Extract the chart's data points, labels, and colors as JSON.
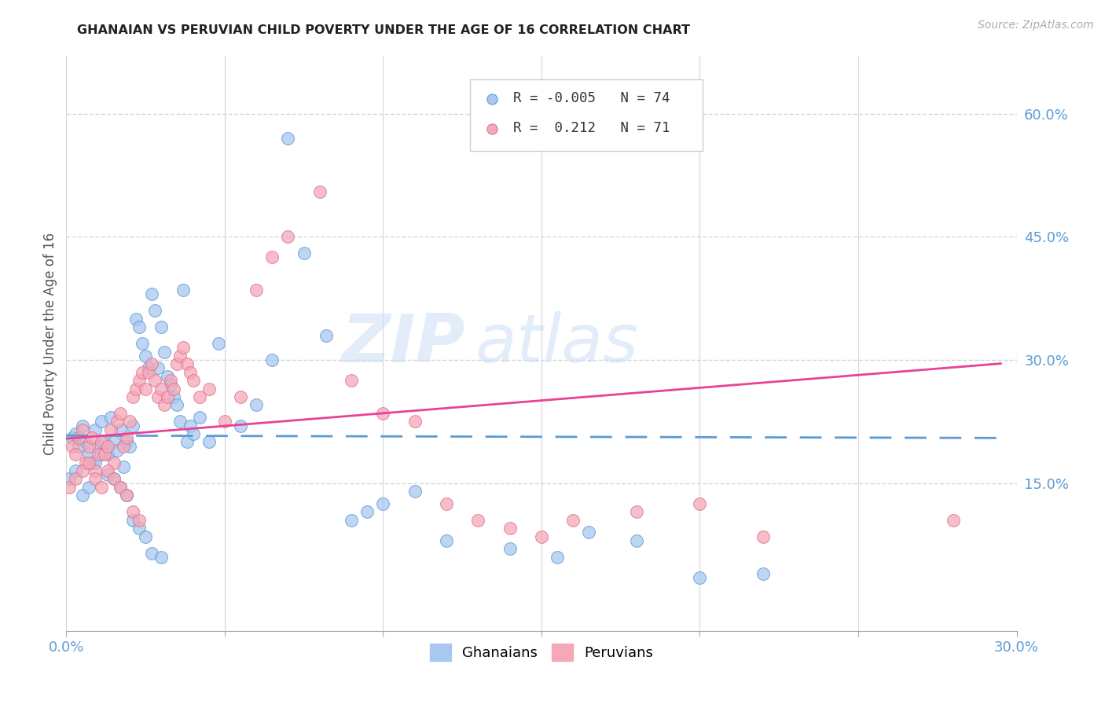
{
  "title": "GHANAIAN VS PERUVIAN CHILD POVERTY UNDER THE AGE OF 16 CORRELATION CHART",
  "source": "Source: ZipAtlas.com",
  "ylabel": "Child Poverty Under the Age of 16",
  "xlim": [
    0.0,
    0.3
  ],
  "ylim": [
    -0.03,
    0.67
  ],
  "ytick_labels_right": [
    "60.0%",
    "45.0%",
    "30.0%",
    "15.0%"
  ],
  "ytick_vals_right": [
    0.6,
    0.45,
    0.3,
    0.15
  ],
  "background_color": "#ffffff",
  "grid_color": "#cccccc",
  "watermark_zip": "ZIP",
  "watermark_atlas": "atlas",
  "color_ghanaian": "#a8c8f0",
  "color_peruvian": "#f5a8b8",
  "edge_ghanaian": "#5b9bd5",
  "edge_peruvian": "#e07090",
  "line_color_ghanaian": "#5b9bd5",
  "line_color_peruvian": "#e84393",
  "scatter_alpha": 0.75,
  "gh_x": [
    0.002,
    0.003,
    0.004,
    0.005,
    0.006,
    0.007,
    0.008,
    0.009,
    0.01,
    0.011,
    0.012,
    0.013,
    0.014,
    0.015,
    0.016,
    0.017,
    0.018,
    0.019,
    0.02,
    0.021,
    0.022,
    0.023,
    0.024,
    0.025,
    0.026,
    0.027,
    0.028,
    0.029,
    0.03,
    0.031,
    0.032,
    0.033,
    0.034,
    0.035,
    0.036,
    0.037,
    0.038,
    0.039,
    0.04,
    0.042,
    0.045,
    0.048,
    0.055,
    0.06,
    0.065,
    0.07,
    0.075,
    0.082,
    0.09,
    0.095,
    0.1,
    0.11,
    0.12,
    0.14,
    0.155,
    0.165,
    0.18,
    0.2,
    0.22,
    0.001,
    0.003,
    0.005,
    0.007,
    0.009,
    0.011,
    0.013,
    0.015,
    0.017,
    0.019,
    0.021,
    0.023,
    0.025,
    0.027,
    0.03
  ],
  "gh_y": [
    0.205,
    0.21,
    0.195,
    0.22,
    0.2,
    0.185,
    0.175,
    0.215,
    0.195,
    0.225,
    0.2,
    0.185,
    0.23,
    0.2,
    0.19,
    0.215,
    0.17,
    0.2,
    0.195,
    0.22,
    0.35,
    0.34,
    0.32,
    0.305,
    0.29,
    0.38,
    0.36,
    0.29,
    0.34,
    0.31,
    0.28,
    0.27,
    0.255,
    0.245,
    0.225,
    0.385,
    0.2,
    0.22,
    0.21,
    0.23,
    0.2,
    0.32,
    0.22,
    0.245,
    0.3,
    0.57,
    0.43,
    0.33,
    0.105,
    0.115,
    0.125,
    0.14,
    0.08,
    0.07,
    0.06,
    0.09,
    0.08,
    0.035,
    0.04,
    0.155,
    0.165,
    0.135,
    0.145,
    0.175,
    0.185,
    0.16,
    0.155,
    0.145,
    0.135,
    0.105,
    0.095,
    0.085,
    0.065,
    0.06
  ],
  "pe_x": [
    0.002,
    0.003,
    0.004,
    0.005,
    0.006,
    0.007,
    0.008,
    0.009,
    0.01,
    0.011,
    0.012,
    0.013,
    0.014,
    0.015,
    0.016,
    0.017,
    0.018,
    0.019,
    0.02,
    0.021,
    0.022,
    0.023,
    0.024,
    0.025,
    0.026,
    0.027,
    0.028,
    0.029,
    0.03,
    0.031,
    0.032,
    0.033,
    0.034,
    0.035,
    0.036,
    0.037,
    0.038,
    0.039,
    0.04,
    0.042,
    0.045,
    0.05,
    0.055,
    0.06,
    0.065,
    0.07,
    0.08,
    0.09,
    0.1,
    0.11,
    0.12,
    0.13,
    0.14,
    0.15,
    0.16,
    0.18,
    0.2,
    0.22,
    0.28,
    0.001,
    0.003,
    0.005,
    0.007,
    0.009,
    0.011,
    0.013,
    0.015,
    0.017,
    0.019,
    0.021,
    0.023
  ],
  "pe_y": [
    0.195,
    0.185,
    0.205,
    0.215,
    0.175,
    0.195,
    0.205,
    0.165,
    0.185,
    0.2,
    0.185,
    0.195,
    0.215,
    0.175,
    0.225,
    0.235,
    0.195,
    0.205,
    0.225,
    0.255,
    0.265,
    0.275,
    0.285,
    0.265,
    0.285,
    0.295,
    0.275,
    0.255,
    0.265,
    0.245,
    0.255,
    0.275,
    0.265,
    0.295,
    0.305,
    0.315,
    0.295,
    0.285,
    0.275,
    0.255,
    0.265,
    0.225,
    0.255,
    0.385,
    0.425,
    0.45,
    0.505,
    0.275,
    0.235,
    0.225,
    0.125,
    0.105,
    0.095,
    0.085,
    0.105,
    0.115,
    0.125,
    0.085,
    0.105,
    0.145,
    0.155,
    0.165,
    0.175,
    0.155,
    0.145,
    0.165,
    0.155,
    0.145,
    0.135,
    0.115,
    0.105
  ]
}
